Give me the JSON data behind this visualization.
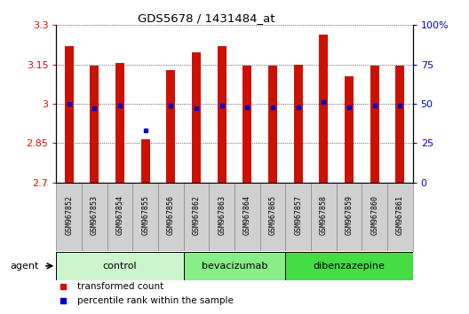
{
  "title": "GDS5678 / 1431484_at",
  "samples": [
    "GSM967852",
    "GSM967853",
    "GSM967854",
    "GSM967855",
    "GSM967856",
    "GSM967862",
    "GSM967863",
    "GSM967864",
    "GSM967865",
    "GSM967857",
    "GSM967858",
    "GSM967859",
    "GSM967860",
    "GSM967861"
  ],
  "bar_values": [
    3.22,
    3.145,
    3.155,
    2.865,
    3.13,
    3.195,
    3.22,
    3.145,
    3.145,
    3.15,
    3.265,
    3.105,
    3.145,
    3.145
  ],
  "dot_values": [
    50,
    47,
    49,
    33,
    49,
    47,
    49,
    48,
    48,
    48,
    51,
    48,
    49,
    49
  ],
  "groups": [
    {
      "name": "control",
      "start": 0,
      "end": 5,
      "color": "#ccf5cc"
    },
    {
      "name": "bevacizumab",
      "start": 5,
      "end": 9,
      "color": "#88ee88"
    },
    {
      "name": "dibenzazepine",
      "start": 9,
      "end": 14,
      "color": "#44dd44"
    }
  ],
  "ylim_left": [
    2.7,
    3.3
  ],
  "ylim_right": [
    0,
    100
  ],
  "yticks_left": [
    2.7,
    2.85,
    3.0,
    3.15,
    3.3
  ],
  "yticks_right": [
    0,
    25,
    50,
    75,
    100
  ],
  "ytick_labels_left": [
    "2.7",
    "2.85",
    "3",
    "3.15",
    "3.3"
  ],
  "ytick_labels_right": [
    "0",
    "25",
    "50",
    "75",
    "100%"
  ],
  "bar_color": "#cc1100",
  "dot_color": "#0000cc",
  "bar_bottom": 2.7,
  "background_color": "#ffffff",
  "grid_color": "#000000",
  "agent_label": "agent",
  "legend_items": [
    {
      "label": "transformed count",
      "color": "#cc1100"
    },
    {
      "label": "percentile rank within the sample",
      "color": "#0000cc"
    }
  ],
  "sample_box_color": "#d0d0d0",
  "bar_width": 0.35
}
